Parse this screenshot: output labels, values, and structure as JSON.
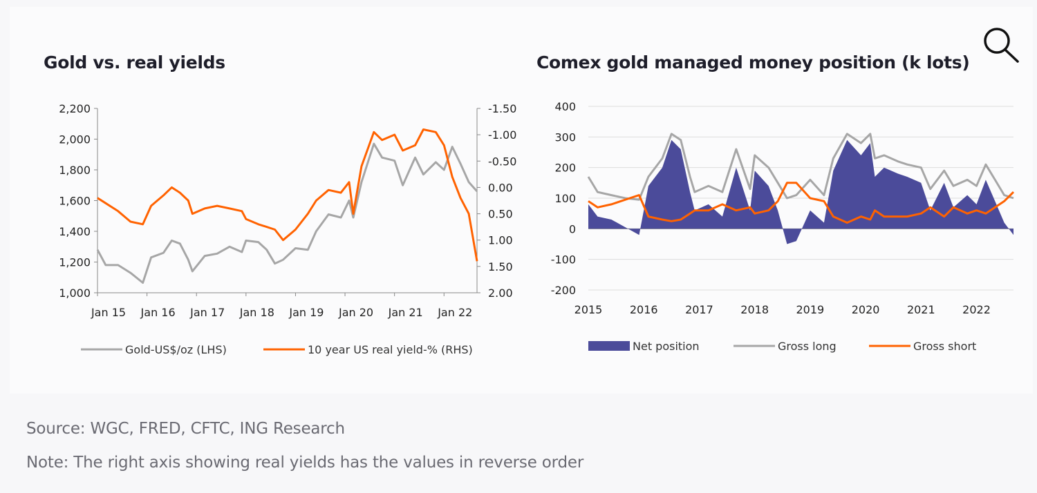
{
  "zoom_icon": "magnifier-icon",
  "footer": {
    "source": "Source: WGC, FRED, CFTC, ING Research",
    "note": "Note: The right axis showing real yields has the values in reverse order"
  },
  "chart_data": [
    {
      "type": "line",
      "title": "Gold vs. real yields",
      "x_tick_labels": [
        "Jan 15",
        "Jan 16",
        "Jan 17",
        "Jan 18",
        "Jan 19",
        "Jan 20",
        "Jan 21",
        "Jan 22"
      ],
      "x_range": [
        "2015-01",
        "2022-09"
      ],
      "y_left": {
        "ticks": [
          1000,
          1200,
          1400,
          1600,
          1800,
          2000,
          2200
        ],
        "tick_labels": [
          "1,000",
          "1,200",
          "1,400",
          "1,600",
          "1,800",
          "2,000",
          "2,200"
        ],
        "ylim": [
          1000,
          2200
        ]
      },
      "y_right": {
        "ticks": [
          -1.5,
          -1.0,
          -0.5,
          0.0,
          0.5,
          1.0,
          1.5,
          2.0
        ],
        "tick_labels": [
          "-1.50",
          "-1.00",
          "-0.50",
          "0.00",
          "0.50",
          "1.00",
          "1.50",
          "2.00"
        ],
        "ylim": [
          -1.5,
          2.0
        ],
        "reversed": true
      },
      "grid": false,
      "legend_position": "bottom",
      "series": [
        {
          "name": "Gold-US$/oz (LHS)",
          "axis": "left",
          "color": "#a6a6a6",
          "points": [
            [
              "2015-01",
              1280
            ],
            [
              "2015-03",
              1180
            ],
            [
              "2015-06",
              1180
            ],
            [
              "2015-09",
              1130
            ],
            [
              "2015-12",
              1065
            ],
            [
              "2016-02",
              1230
            ],
            [
              "2016-05",
              1260
            ],
            [
              "2016-07",
              1340
            ],
            [
              "2016-09",
              1320
            ],
            [
              "2016-11",
              1215
            ],
            [
              "2016-12",
              1140
            ],
            [
              "2017-03",
              1240
            ],
            [
              "2017-06",
              1255
            ],
            [
              "2017-09",
              1300
            ],
            [
              "2017-12",
              1265
            ],
            [
              "2018-01",
              1340
            ],
            [
              "2018-04",
              1330
            ],
            [
              "2018-06",
              1280
            ],
            [
              "2018-08",
              1190
            ],
            [
              "2018-10",
              1215
            ],
            [
              "2019-01",
              1290
            ],
            [
              "2019-04",
              1280
            ],
            [
              "2019-06",
              1400
            ],
            [
              "2019-09",
              1510
            ],
            [
              "2019-12",
              1490
            ],
            [
              "2020-02",
              1600
            ],
            [
              "2020-03",
              1490
            ],
            [
              "2020-05",
              1720
            ],
            [
              "2020-08",
              1970
            ],
            [
              "2020-10",
              1880
            ],
            [
              "2021-01",
              1860
            ],
            [
              "2021-03",
              1700
            ],
            [
              "2021-06",
              1880
            ],
            [
              "2021-08",
              1770
            ],
            [
              "2021-11",
              1850
            ],
            [
              "2022-01",
              1800
            ],
            [
              "2022-03",
              1950
            ],
            [
              "2022-05",
              1840
            ],
            [
              "2022-07",
              1720
            ],
            [
              "2022-09",
              1660
            ]
          ]
        },
        {
          "name": "10 year US real yield-% (RHS)",
          "axis": "right",
          "color": "#ff6200",
          "points": [
            [
              "2015-01",
              0.2
            ],
            [
              "2015-03",
              0.3
            ],
            [
              "2015-06",
              0.45
            ],
            [
              "2015-09",
              0.65
            ],
            [
              "2015-12",
              0.7
            ],
            [
              "2016-02",
              0.35
            ],
            [
              "2016-05",
              0.15
            ],
            [
              "2016-07",
              0.0
            ],
            [
              "2016-09",
              0.1
            ],
            [
              "2016-11",
              0.25
            ],
            [
              "2016-12",
              0.5
            ],
            [
              "2017-03",
              0.4
            ],
            [
              "2017-06",
              0.35
            ],
            [
              "2017-09",
              0.4
            ],
            [
              "2017-12",
              0.45
            ],
            [
              "2018-01",
              0.6
            ],
            [
              "2018-04",
              0.7
            ],
            [
              "2018-06",
              0.75
            ],
            [
              "2018-08",
              0.8
            ],
            [
              "2018-10",
              1.0
            ],
            [
              "2019-01",
              0.8
            ],
            [
              "2019-04",
              0.5
            ],
            [
              "2019-06",
              0.25
            ],
            [
              "2019-09",
              0.05
            ],
            [
              "2019-12",
              0.1
            ],
            [
              "2020-02",
              -0.1
            ],
            [
              "2020-03",
              0.5
            ],
            [
              "2020-05",
              -0.4
            ],
            [
              "2020-08",
              -1.05
            ],
            [
              "2020-10",
              -0.9
            ],
            [
              "2021-01",
              -1.0
            ],
            [
              "2021-03",
              -0.7
            ],
            [
              "2021-06",
              -0.8
            ],
            [
              "2021-08",
              -1.1
            ],
            [
              "2021-11",
              -1.05
            ],
            [
              "2022-01",
              -0.8
            ],
            [
              "2022-03",
              -0.2
            ],
            [
              "2022-05",
              0.2
            ],
            [
              "2022-07",
              0.5
            ],
            [
              "2022-09",
              1.4
            ]
          ]
        }
      ]
    },
    {
      "type": "line",
      "title": "Comex gold managed money position (k lots)",
      "x_tick_labels": [
        "2015",
        "2016",
        "2017",
        "2018",
        "2019",
        "2020",
        "2021",
        "2022"
      ],
      "x_range": [
        "2015-01",
        "2022-09"
      ],
      "y": {
        "ticks": [
          -200,
          -100,
          0,
          100,
          200,
          300,
          400
        ],
        "tick_labels": [
          "-200",
          "-100",
          "0",
          "100",
          "200",
          "300",
          "400"
        ],
        "ylim": [
          -200,
          400
        ]
      },
      "grid": true,
      "legend_position": "bottom",
      "series": [
        {
          "name": "Net position",
          "type": "area",
          "color": "#4b4b9a",
          "points": [
            [
              "2015-01",
              80
            ],
            [
              "2015-03",
              40
            ],
            [
              "2015-06",
              30
            ],
            [
              "2015-09",
              5
            ],
            [
              "2015-12",
              -20
            ],
            [
              "2016-02",
              140
            ],
            [
              "2016-05",
              200
            ],
            [
              "2016-07",
              290
            ],
            [
              "2016-09",
              260
            ],
            [
              "2016-11",
              120
            ],
            [
              "2016-12",
              60
            ],
            [
              "2017-03",
              80
            ],
            [
              "2017-06",
              40
            ],
            [
              "2017-09",
              200
            ],
            [
              "2017-12",
              60
            ],
            [
              "2018-01",
              190
            ],
            [
              "2018-04",
              140
            ],
            [
              "2018-06",
              60
            ],
            [
              "2018-08",
              -50
            ],
            [
              "2018-10",
              -40
            ],
            [
              "2019-01",
              60
            ],
            [
              "2019-04",
              20
            ],
            [
              "2019-06",
              190
            ],
            [
              "2019-09",
              290
            ],
            [
              "2019-12",
              240
            ],
            [
              "2020-02",
              280
            ],
            [
              "2020-03",
              170
            ],
            [
              "2020-05",
              200
            ],
            [
              "2020-08",
              180
            ],
            [
              "2020-10",
              170
            ],
            [
              "2021-01",
              150
            ],
            [
              "2021-03",
              60
            ],
            [
              "2021-06",
              150
            ],
            [
              "2021-08",
              70
            ],
            [
              "2021-11",
              110
            ],
            [
              "2022-01",
              80
            ],
            [
              "2022-03",
              160
            ],
            [
              "2022-05",
              90
            ],
            [
              "2022-07",
              20
            ],
            [
              "2022-09",
              -20
            ]
          ]
        },
        {
          "name": "Gross long",
          "color": "#a6a6a6",
          "points": [
            [
              "2015-01",
              170
            ],
            [
              "2015-03",
              120
            ],
            [
              "2015-06",
              110
            ],
            [
              "2015-09",
              100
            ],
            [
              "2015-12",
              95
            ],
            [
              "2016-02",
              170
            ],
            [
              "2016-05",
              230
            ],
            [
              "2016-07",
              310
            ],
            [
              "2016-09",
              290
            ],
            [
              "2016-11",
              170
            ],
            [
              "2016-12",
              120
            ],
            [
              "2017-03",
              140
            ],
            [
              "2017-06",
              120
            ],
            [
              "2017-09",
              260
            ],
            [
              "2017-12",
              130
            ],
            [
              "2018-01",
              240
            ],
            [
              "2018-04",
              200
            ],
            [
              "2018-06",
              150
            ],
            [
              "2018-08",
              100
            ],
            [
              "2018-10",
              110
            ],
            [
              "2019-01",
              160
            ],
            [
              "2019-04",
              110
            ],
            [
              "2019-06",
              230
            ],
            [
              "2019-09",
              310
            ],
            [
              "2019-12",
              280
            ],
            [
              "2020-02",
              310
            ],
            [
              "2020-03",
              230
            ],
            [
              "2020-05",
              240
            ],
            [
              "2020-08",
              220
            ],
            [
              "2020-10",
              210
            ],
            [
              "2021-01",
              200
            ],
            [
              "2021-03",
              130
            ],
            [
              "2021-06",
              190
            ],
            [
              "2021-08",
              140
            ],
            [
              "2021-11",
              160
            ],
            [
              "2022-01",
              140
            ],
            [
              "2022-03",
              210
            ],
            [
              "2022-05",
              160
            ],
            [
              "2022-07",
              110
            ],
            [
              "2022-09",
              100
            ]
          ]
        },
        {
          "name": "Gross short",
          "color": "#ff6200",
          "points": [
            [
              "2015-01",
              90
            ],
            [
              "2015-03",
              70
            ],
            [
              "2015-06",
              80
            ],
            [
              "2015-09",
              95
            ],
            [
              "2015-12",
              110
            ],
            [
              "2016-02",
              40
            ],
            [
              "2016-05",
              30
            ],
            [
              "2016-07",
              25
            ],
            [
              "2016-09",
              30
            ],
            [
              "2016-11",
              50
            ],
            [
              "2016-12",
              60
            ],
            [
              "2017-03",
              60
            ],
            [
              "2017-06",
              80
            ],
            [
              "2017-09",
              60
            ],
            [
              "2017-12",
              70
            ],
            [
              "2018-01",
              50
            ],
            [
              "2018-04",
              60
            ],
            [
              "2018-06",
              90
            ],
            [
              "2018-08",
              150
            ],
            [
              "2018-10",
              150
            ],
            [
              "2019-01",
              100
            ],
            [
              "2019-04",
              90
            ],
            [
              "2019-06",
              40
            ],
            [
              "2019-09",
              20
            ],
            [
              "2019-12",
              40
            ],
            [
              "2020-02",
              30
            ],
            [
              "2020-03",
              60
            ],
            [
              "2020-05",
              40
            ],
            [
              "2020-08",
              40
            ],
            [
              "2020-10",
              40
            ],
            [
              "2021-01",
              50
            ],
            [
              "2021-03",
              70
            ],
            [
              "2021-06",
              40
            ],
            [
              "2021-08",
              70
            ],
            [
              "2021-11",
              50
            ],
            [
              "2022-01",
              60
            ],
            [
              "2022-03",
              50
            ],
            [
              "2022-05",
              70
            ],
            [
              "2022-07",
              90
            ],
            [
              "2022-09",
              120
            ]
          ]
        }
      ]
    }
  ]
}
